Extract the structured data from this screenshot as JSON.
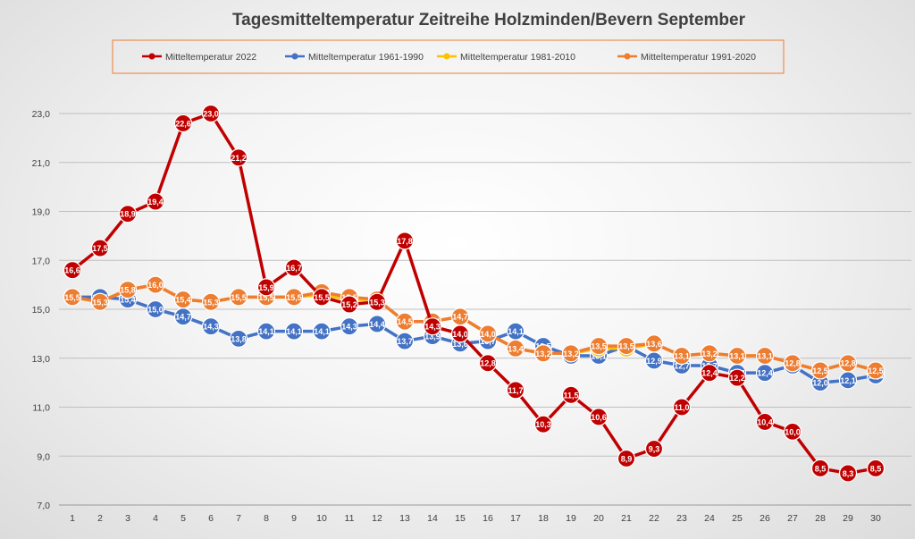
{
  "chart_data": {
    "type": "line",
    "title": "Tagesmitteltemperatur Zeitreihe Holzminden/Bevern September",
    "xlabel": "",
    "ylabel": "",
    "ylim": [
      7.0,
      23.0
    ],
    "yticks": [
      "7,0",
      "9,0",
      "11,0",
      "13,0",
      "15,0",
      "17,0",
      "19,0",
      "21,0",
      "23,0"
    ],
    "categories": [
      "1",
      "2",
      "3",
      "4",
      "5",
      "6",
      "7",
      "8",
      "9",
      "10",
      "11",
      "12",
      "13",
      "14",
      "15",
      "16",
      "17",
      "18",
      "19",
      "20",
      "21",
      "22",
      "23",
      "24",
      "25",
      "26",
      "27",
      "28",
      "29",
      "30"
    ],
    "grid": true,
    "legend_position": "top",
    "colors": {
      "grid": "#bfbfbf",
      "legend_border": "#ed7d31",
      "axis_text": "#404040",
      "title": "#404040"
    },
    "series": [
      {
        "name": "Mitteltemperatur 1961-1990",
        "color": "#4472c4",
        "values": [
          15.5,
          15.5,
          15.4,
          15.0,
          14.7,
          14.3,
          13.8,
          14.1,
          14.1,
          14.1,
          14.3,
          14.4,
          13.7,
          13.9,
          13.6,
          13.7,
          14.1,
          13.5,
          13.1,
          13.1,
          13.5,
          12.9,
          12.7,
          12.7,
          12.4,
          12.4,
          12.7,
          12.0,
          12.1,
          12.3
        ],
        "labels": [
          "15,5",
          "15,5",
          "15,4",
          "15,0",
          "14,7",
          "14,3",
          "13,8",
          "14,1",
          "14,1",
          "14,1",
          "14,3",
          "14,4",
          "13,7",
          "13,9",
          "13,6",
          "13,7",
          "14,1",
          "13,5",
          "13,1",
          "13,1",
          "13,5",
          "12,9",
          "12,7",
          "12,7",
          "12,4",
          "12,4",
          "12,7",
          "12,0",
          "12,1",
          "12,3"
        ]
      },
      {
        "name": "Mitteltemperatur 1981-2010",
        "color": "#ffc000",
        "values": [
          15.5,
          15.3,
          15.8,
          16.0,
          15.4,
          15.3,
          15.5,
          15.5,
          15.5,
          15.6,
          15.4,
          15.4,
          14.5,
          14.5,
          14.7,
          14.0,
          13.4,
          13.2,
          13.2,
          13.4,
          13.4,
          13.6,
          13.1,
          13.2,
          13.1,
          13.1,
          12.8,
          12.5,
          12.8,
          12.5
        ],
        "labels": [
          "15,5",
          "15,3",
          "15,8",
          "16,0",
          "15,4",
          "15,3",
          "15,5",
          "15,5",
          "15,5",
          "15,6",
          "15,4",
          "15,4",
          "14,5",
          "14,5",
          "14,7",
          "14,0",
          "13,4",
          "13,2",
          "13,2",
          "13,4",
          "13,4",
          "13,6",
          "13,1",
          "13,2",
          "13,1",
          "13,1",
          "12,8",
          "12,5",
          "12,8",
          "12,5"
        ]
      },
      {
        "name": "Mitteltemperatur 1991-2020",
        "color": "#ed7d31",
        "values": [
          15.5,
          15.3,
          15.8,
          16.0,
          15.4,
          15.3,
          15.5,
          15.5,
          15.5,
          15.7,
          15.5,
          15.4,
          14.5,
          14.5,
          14.7,
          14.0,
          13.4,
          13.2,
          13.2,
          13.5,
          13.5,
          13.6,
          13.1,
          13.2,
          13.1,
          13.1,
          12.8,
          12.5,
          12.8,
          12.5
        ],
        "labels": [
          "15,5",
          "15,3",
          "15,8",
          "16,0",
          "15,4",
          "15,3",
          "15,5",
          "15,5",
          "15,5",
          "15,7",
          "15,5",
          "15,4",
          "14,5",
          "14,5",
          "14,7",
          "14,0",
          "13,4",
          "13,2",
          "13,2",
          "13,5",
          "13,5",
          "13,6",
          "13,1",
          "13,2",
          "13,1",
          "13,1",
          "12,8",
          "12,5",
          "12,8",
          "12,5"
        ]
      },
      {
        "name": "Mitteltemperatur 2022",
        "color": "#c00000",
        "values": [
          16.6,
          17.5,
          18.9,
          19.4,
          22.6,
          23.0,
          21.2,
          15.9,
          16.7,
          15.5,
          15.2,
          15.3,
          17.8,
          14.3,
          14.0,
          12.8,
          11.7,
          10.3,
          11.5,
          10.6,
          8.9,
          9.3,
          11.0,
          12.4,
          12.2,
          10.4,
          10.0,
          8.5,
          8.3,
          8.5
        ],
        "labels": [
          "16,6",
          "17,5",
          "18,9",
          "19,4",
          "22,6",
          "23,0",
          "21,2",
          "15,9",
          "16,7",
          "15,5",
          "15,2",
          "15,3",
          "17,8",
          "14,3",
          "14,0",
          "12,8",
          "11,7",
          "10,3",
          "11,5",
          "10,6",
          "8,9",
          "9,3",
          "11,0",
          "12,4",
          "12,2",
          "10,4",
          "10,0",
          "8,5",
          "8,3",
          "8,5"
        ]
      }
    ],
    "legend": [
      {
        "label": "Mitteltemperatur 2022",
        "color": "#c00000"
      },
      {
        "label": "Mitteltemperatur 1961-1990",
        "color": "#4472c4"
      },
      {
        "label": "Mitteltemperatur 1981-2010",
        "color": "#ffc000"
      },
      {
        "label": "Mitteltemperatur 1991-2020",
        "color": "#ed7d31"
      }
    ]
  }
}
